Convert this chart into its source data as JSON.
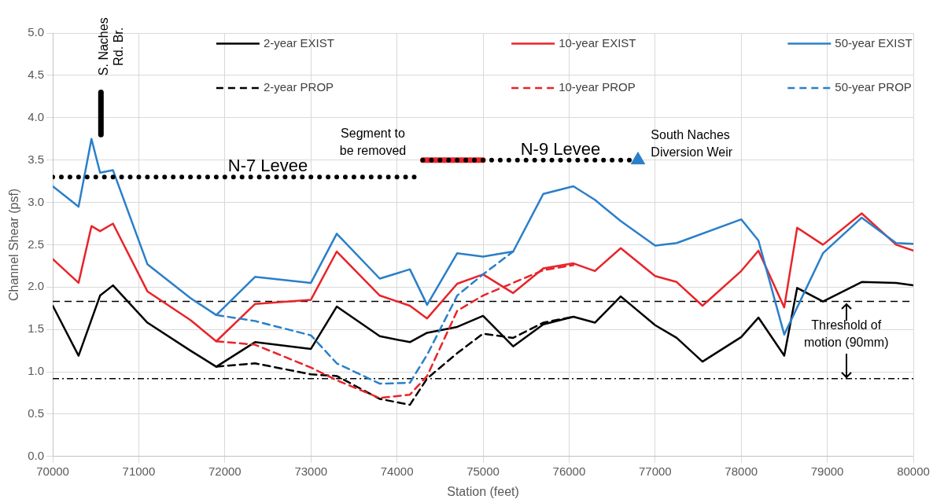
{
  "chart_data": {
    "type": "line",
    "xlabel": "Station (feet)",
    "ylabel": "Channel Shear (psf)",
    "xlim": [
      70000,
      80000
    ],
    "xticks": [
      70000,
      71000,
      72000,
      73000,
      74000,
      75000,
      76000,
      77000,
      78000,
      79000,
      80000
    ],
    "ylim": [
      0,
      5
    ],
    "yticks": [
      {
        "value": 0,
        "label": "0.0"
      },
      {
        "value": 0.5,
        "label": "0.5"
      },
      {
        "value": 1,
        "label": "1.0"
      },
      {
        "value": 1.5,
        "label": "1.5"
      },
      {
        "value": 2,
        "label": "2.0"
      },
      {
        "value": 2.5,
        "label": "2.5"
      },
      {
        "value": 3,
        "label": "3.0"
      },
      {
        "value": 3.5,
        "label": "3.5"
      },
      {
        "value": 4,
        "label": "4.0"
      },
      {
        "value": 4.5,
        "label": "4.5"
      },
      {
        "value": 5,
        "label": "5.0"
      }
    ],
    "grid": true,
    "legend": "top",
    "marker": "none",
    "series": [
      {
        "name": "2-year EXIST",
        "color": "#000000",
        "line_style": "solid",
        "x": [
          70000,
          70300,
          70550,
          70700,
          71100,
          71600,
          71900,
          72350,
          73000,
          73300,
          73800,
          74150,
          74350,
          74700,
          75000,
          75350,
          75700,
          76050,
          76300,
          76600,
          77000,
          77250,
          77550,
          78000,
          78200,
          78500,
          78650,
          78950,
          79400,
          79800,
          80000
        ],
        "values": [
          1.78,
          1.19,
          1.9,
          2.02,
          1.58,
          1.25,
          1.06,
          1.35,
          1.27,
          1.77,
          1.42,
          1.35,
          1.46,
          1.53,
          1.66,
          1.3,
          1.56,
          1.65,
          1.58,
          1.89,
          1.55,
          1.4,
          1.12,
          1.41,
          1.64,
          1.19,
          1.99,
          1.83,
          2.06,
          2.05,
          2.02
        ]
      },
      {
        "name": "10-year EXIST",
        "color": "#e8242a",
        "line_style": "solid",
        "x": [
          70000,
          70300,
          70450,
          70550,
          70700,
          71100,
          71600,
          71900,
          72350,
          73000,
          73300,
          73800,
          74150,
          74350,
          74700,
          75000,
          75350,
          75700,
          76050,
          76300,
          76600,
          77000,
          77250,
          77550,
          78000,
          78200,
          78500,
          78650,
          78950,
          79400,
          79800,
          80000
        ],
        "values": [
          2.33,
          2.05,
          2.72,
          2.66,
          2.75,
          1.95,
          1.61,
          1.36,
          1.8,
          1.85,
          2.42,
          1.9,
          1.78,
          1.63,
          2.04,
          2.15,
          1.93,
          2.22,
          2.28,
          2.19,
          2.46,
          2.13,
          2.06,
          1.78,
          2.19,
          2.43,
          1.76,
          2.7,
          2.5,
          2.87,
          2.5,
          2.43
        ]
      },
      {
        "name": "50-year EXIST",
        "color": "#2a7fc9",
        "line_style": "solid",
        "x": [
          70000,
          70300,
          70450,
          70550,
          70700,
          71100,
          71600,
          71900,
          72350,
          73000,
          73300,
          73800,
          74150,
          74350,
          74700,
          75000,
          75350,
          75700,
          76050,
          76300,
          76600,
          77000,
          77250,
          78000,
          78200,
          78500,
          78950,
          79400,
          79800,
          80000
        ],
        "values": [
          3.19,
          2.95,
          3.75,
          3.35,
          3.38,
          2.27,
          1.87,
          1.67,
          2.12,
          2.05,
          2.63,
          2.1,
          2.21,
          1.79,
          2.4,
          2.36,
          2.42,
          3.1,
          3.19,
          3.03,
          2.78,
          2.49,
          2.52,
          2.8,
          2.55,
          1.44,
          2.4,
          2.82,
          2.52,
          2.51
        ]
      },
      {
        "name": "2-year PROP",
        "color": "#000000",
        "line_style": "dashed",
        "x": [
          71900,
          72350,
          73000,
          73300,
          73800,
          74150,
          74350,
          74700,
          75000,
          75350,
          75700,
          76050
        ],
        "values": [
          1.06,
          1.1,
          0.97,
          0.95,
          0.68,
          0.61,
          0.92,
          1.22,
          1.45,
          1.4,
          1.58,
          1.65
        ]
      },
      {
        "name": "10-year PROP",
        "color": "#e8242a",
        "line_style": "dashed",
        "x": [
          71900,
          72350,
          73000,
          73300,
          73800,
          74150,
          74350,
          74700,
          75000,
          75350,
          75700,
          76050
        ],
        "values": [
          1.36,
          1.32,
          1.05,
          0.9,
          0.69,
          0.73,
          0.95,
          1.72,
          1.9,
          2.05,
          2.2,
          2.26
        ]
      },
      {
        "name": "50-year PROP",
        "color": "#2a7fc9",
        "line_style": "dashed",
        "x": [
          71900,
          72350,
          73000,
          73300,
          73800,
          74150,
          74350,
          74700,
          75000,
          75350
        ],
        "values": [
          1.67,
          1.6,
          1.43,
          1.1,
          0.86,
          0.87,
          1.2,
          1.9,
          2.15,
          2.42
        ]
      },
      {
        "color": "#000000",
        "line_style": "dotted",
        "x": [
          70000,
          74200
        ],
        "values": [
          3.3,
          3.3
        ]
      },
      {
        "color": "#e8242a",
        "line_style": "solid",
        "x": [
          74300,
          75000
        ],
        "values": [
          3.5,
          3.5
        ]
      },
      {
        "color": "#000000",
        "line_style": "dotted",
        "x": [
          74300,
          76700
        ],
        "values": [
          3.5,
          3.5
        ]
      },
      {
        "color": "#000000",
        "line_style": "solid",
        "x": [
          70560,
          70560
        ],
        "values": [
          3.8,
          4.3
        ]
      },
      {
        "type": "scatter",
        "marker": "triangle",
        "color": "#2a7fc9",
        "x": [
          76800
        ],
        "values": [
          3.5
        ]
      }
    ],
    "ref_lines": [
      {
        "axis": "y",
        "value": 1.83,
        "color": "#000000",
        "line_style": "dashed"
      },
      {
        "axis": "y",
        "value": 0.92,
        "color": "#000000",
        "line_style": "dashdot"
      }
    ],
    "annotations": [
      "S. Naches\nRd. Br.",
      {
        "text": "N-7 Levee",
        "x": 72500,
        "y": 3.3
      },
      {
        "text": "N-9 Levee",
        "x": 75900,
        "y": 3.5
      },
      "Segment to\nbe removed",
      "South Naches\nDiversion Weir",
      "Threshold of\nmotion (90mm)"
    ]
  }
}
